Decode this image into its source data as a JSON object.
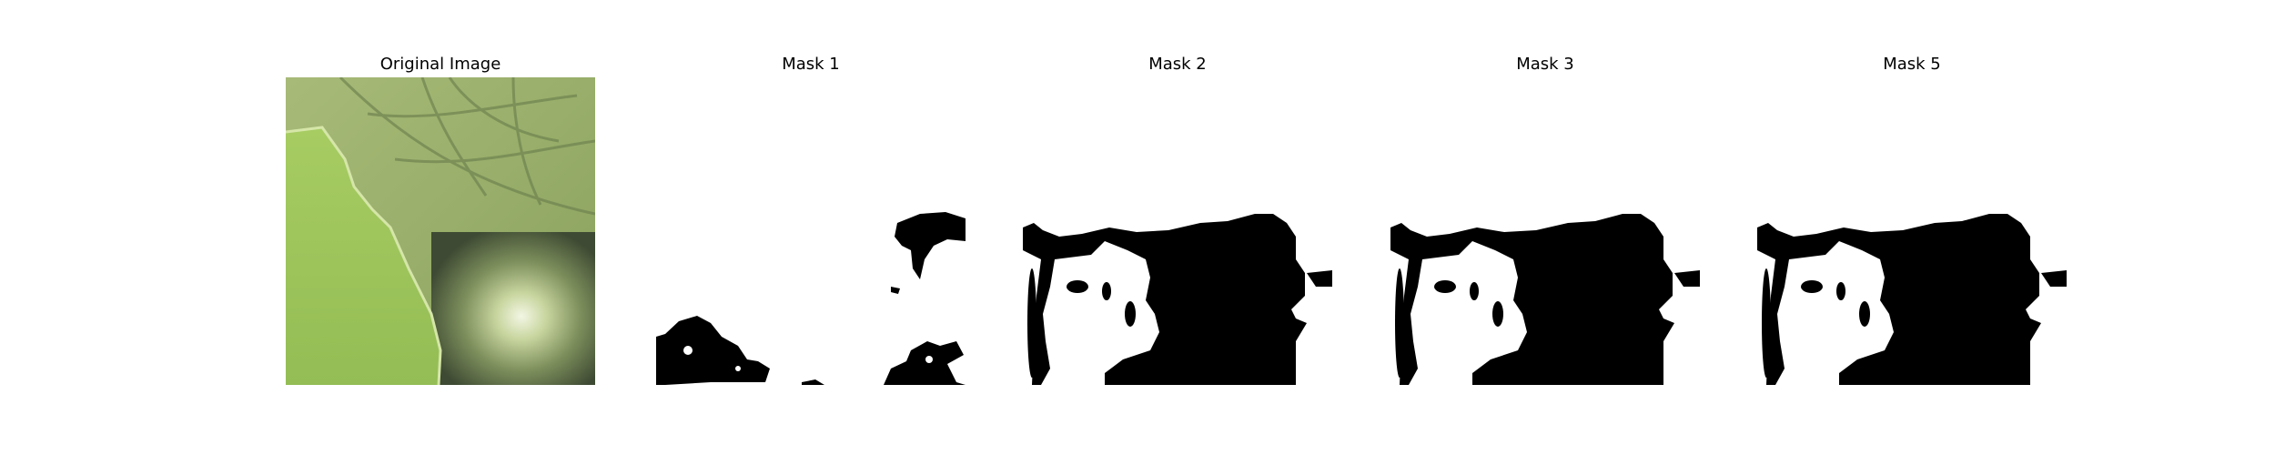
{
  "figure": {
    "panels": [
      {
        "title": "Original Image"
      },
      {
        "title": "Mask 1"
      },
      {
        "title": "Mask 2"
      },
      {
        "title": "Mask 3"
      },
      {
        "title": "Mask 5"
      }
    ]
  }
}
